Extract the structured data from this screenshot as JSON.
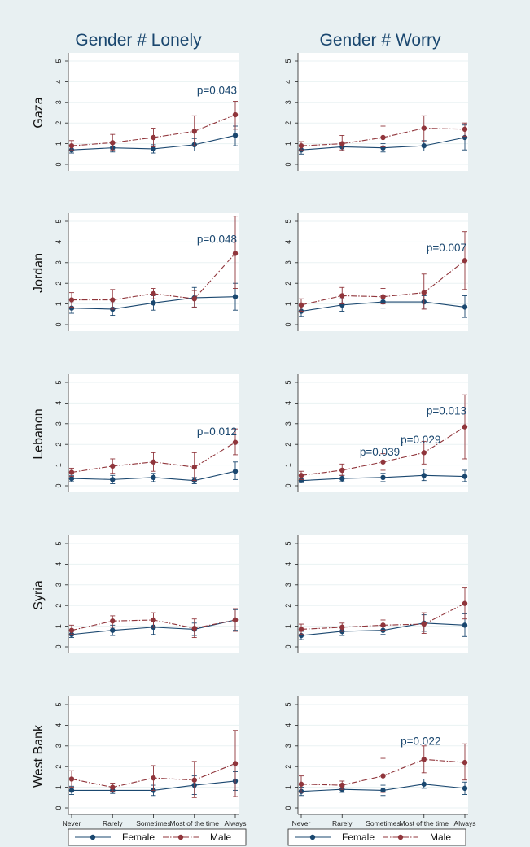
{
  "chart_data": {
    "type": "line",
    "columns": [
      "Gender # Lonely",
      "Gender # Worry"
    ],
    "rows": [
      "Gaza",
      "Jordan",
      "Lebanon",
      "Syria",
      "West Bank"
    ],
    "categories": [
      "Never",
      "Rarely",
      "Sometimes",
      "Most of the time",
      "Always"
    ],
    "ylim": [
      0,
      5
    ],
    "yticks": [
      "0",
      "1",
      "2",
      "3",
      "4",
      "5"
    ],
    "legend": [
      {
        "name": "Female",
        "color": "#1a476f"
      },
      {
        "name": "Male",
        "color": "#90353b"
      }
    ],
    "panels": [
      {
        "column": "Gender # Lonely",
        "row": "Gaza",
        "series": [
          {
            "name": "Female",
            "values": [
              0.7,
              0.8,
              0.75,
              0.95,
              1.4
            ],
            "lo": [
              0.55,
              0.6,
              0.55,
              0.65,
              0.9
            ],
            "hi": [
              0.9,
              1.0,
              0.95,
              1.25,
              1.85
            ]
          },
          {
            "name": "Male",
            "values": [
              0.9,
              1.05,
              1.3,
              1.6,
              2.4
            ],
            "lo": [
              0.7,
              0.7,
              0.85,
              0.9,
              1.7
            ],
            "hi": [
              1.15,
              1.45,
              1.75,
              2.35,
              3.05
            ]
          }
        ],
        "annotations": [
          {
            "text": "p=0.043",
            "x": "Always",
            "y": 3.4
          }
        ]
      },
      {
        "column": "Gender # Worry",
        "row": "Gaza",
        "series": [
          {
            "name": "Female",
            "values": [
              0.7,
              0.85,
              0.8,
              0.9,
              1.3
            ],
            "lo": [
              0.5,
              0.65,
              0.6,
              0.65,
              0.7
            ],
            "hi": [
              0.9,
              1.05,
              1.0,
              1.15,
              1.9
            ]
          },
          {
            "name": "Male",
            "values": [
              0.9,
              1.0,
              1.3,
              1.75,
              1.7
            ],
            "lo": [
              0.7,
              0.7,
              0.85,
              1.1,
              1.35
            ],
            "hi": [
              1.1,
              1.4,
              1.85,
              2.35,
              2.0
            ]
          }
        ],
        "annotations": []
      },
      {
        "column": "Gender # Lonely",
        "row": "Jordan",
        "series": [
          {
            "name": "Female",
            "values": [
              0.8,
              0.75,
              1.05,
              1.3,
              1.35
            ],
            "lo": [
              0.55,
              0.45,
              0.7,
              0.85,
              0.7
            ],
            "hi": [
              1.05,
              1.05,
              1.4,
              1.8,
              2.0
            ]
          },
          {
            "name": "Male",
            "values": [
              1.2,
              1.2,
              1.5,
              1.25,
              3.45
            ],
            "lo": [
              0.85,
              0.75,
              1.25,
              0.85,
              1.75
            ],
            "hi": [
              1.55,
              1.7,
              1.75,
              1.65,
              5.25
            ]
          }
        ],
        "annotations": [
          {
            "text": "p=0.048",
            "x": "Always",
            "y": 3.95
          }
        ]
      },
      {
        "column": "Gender # Worry",
        "row": "Jordan",
        "series": [
          {
            "name": "Female",
            "values": [
              0.65,
              0.95,
              1.1,
              1.1,
              0.85
            ],
            "lo": [
              0.4,
              0.65,
              0.8,
              0.8,
              0.35
            ],
            "hi": [
              0.9,
              1.25,
              1.4,
              1.4,
              1.4
            ]
          },
          {
            "name": "Male",
            "values": [
              0.95,
              1.4,
              1.35,
              1.55,
              3.1
            ],
            "lo": [
              0.65,
              1.0,
              1.0,
              0.75,
              1.7
            ],
            "hi": [
              1.25,
              1.8,
              1.75,
              2.45,
              4.5
            ]
          }
        ],
        "annotations": [
          {
            "text": "p=0.007",
            "x": "Always",
            "y": 3.55
          }
        ]
      },
      {
        "column": "Gender # Lonely",
        "row": "Lebanon",
        "series": [
          {
            "name": "Female",
            "values": [
              0.35,
              0.3,
              0.4,
              0.25,
              0.7
            ],
            "lo": [
              0.2,
              0.1,
              0.2,
              0.1,
              0.3
            ],
            "hi": [
              0.5,
              0.5,
              0.6,
              0.4,
              1.15
            ]
          },
          {
            "name": "Male",
            "values": [
              0.65,
              0.95,
              1.15,
              0.9,
              2.1
            ],
            "lo": [
              0.45,
              0.6,
              0.7,
              0.25,
              1.5
            ],
            "hi": [
              0.85,
              1.3,
              1.6,
              1.6,
              2.75
            ]
          }
        ],
        "annotations": [
          {
            "text": "p=0.012",
            "x": "Always",
            "y": 2.45
          }
        ]
      },
      {
        "column": "Gender # Worry",
        "row": "Lebanon",
        "series": [
          {
            "name": "Female",
            "values": [
              0.25,
              0.35,
              0.4,
              0.5,
              0.45
            ],
            "lo": [
              0.15,
              0.2,
              0.2,
              0.25,
              0.2
            ],
            "hi": [
              0.35,
              0.5,
              0.6,
              0.8,
              0.75
            ]
          },
          {
            "name": "Male",
            "values": [
              0.5,
              0.75,
              1.15,
              1.6,
              2.85
            ],
            "lo": [
              0.3,
              0.5,
              0.75,
              1.05,
              1.3
            ],
            "hi": [
              0.7,
              1.05,
              1.55,
              2.15,
              4.4
            ]
          }
        ],
        "annotations": [
          {
            "text": "p=0.039",
            "x": "Sometimes",
            "y": 1.45
          },
          {
            "text": "p=0.029",
            "x": "Most of the time",
            "y": 2.05
          },
          {
            "text": "p=0.013",
            "x": "Always",
            "y": 3.45
          }
        ]
      },
      {
        "column": "Gender # Lonely",
        "row": "Syria",
        "series": [
          {
            "name": "Female",
            "values": [
              0.6,
              0.8,
              0.95,
              0.85,
              1.3
            ],
            "lo": [
              0.45,
              0.55,
              0.6,
              0.55,
              0.8
            ],
            "hi": [
              0.75,
              1.05,
              1.3,
              1.15,
              1.8
            ]
          },
          {
            "name": "Male",
            "values": [
              0.8,
              1.25,
              1.3,
              0.9,
              1.3
            ],
            "lo": [
              0.6,
              0.95,
              0.95,
              0.45,
              0.75
            ],
            "hi": [
              1.05,
              1.5,
              1.65,
              1.35,
              1.85
            ]
          }
        ],
        "annotations": []
      },
      {
        "column": "Gender # Worry",
        "row": "Syria",
        "series": [
          {
            "name": "Female",
            "values": [
              0.55,
              0.75,
              0.8,
              1.15,
              1.05
            ],
            "lo": [
              0.35,
              0.55,
              0.6,
              0.75,
              0.5
            ],
            "hi": [
              0.75,
              0.95,
              1.0,
              1.55,
              1.6
            ]
          },
          {
            "name": "Male",
            "values": [
              0.85,
              0.95,
              1.05,
              1.1,
              2.1
            ],
            "lo": [
              0.6,
              0.75,
              0.8,
              0.65,
              1.35
            ],
            "hi": [
              1.1,
              1.15,
              1.3,
              1.65,
              2.85
            ]
          }
        ],
        "annotations": []
      },
      {
        "column": "Gender # Lonely",
        "row": "West Bank",
        "series": [
          {
            "name": "Female",
            "values": [
              0.85,
              0.85,
              0.85,
              1.1,
              1.3
            ],
            "lo": [
              0.65,
              0.7,
              0.6,
              0.65,
              0.85
            ],
            "hi": [
              1.05,
              1.0,
              1.1,
              1.55,
              1.75
            ]
          },
          {
            "name": "Male",
            "values": [
              1.4,
              1.0,
              1.45,
              1.35,
              2.15
            ],
            "lo": [
              1.0,
              0.8,
              0.85,
              0.5,
              0.55
            ],
            "hi": [
              1.8,
              1.2,
              2.05,
              2.25,
              3.75
            ]
          }
        ],
        "annotations": []
      },
      {
        "column": "Gender # Worry",
        "row": "West Bank",
        "series": [
          {
            "name": "Female",
            "values": [
              0.8,
              0.9,
              0.85,
              1.15,
              0.95
            ],
            "lo": [
              0.6,
              0.75,
              0.6,
              0.95,
              0.65
            ],
            "hi": [
              1.0,
              1.05,
              1.1,
              1.4,
              1.25
            ]
          },
          {
            "name": "Male",
            "values": [
              1.15,
              1.1,
              1.55,
              2.35,
              2.2
            ],
            "lo": [
              0.75,
              0.9,
              0.75,
              1.7,
              1.35
            ],
            "hi": [
              1.55,
              1.3,
              2.4,
              3.0,
              3.1
            ]
          }
        ],
        "annotations": [
          {
            "text": "p=0.022",
            "x": "Most of the time",
            "y": 3.05
          }
        ]
      }
    ]
  }
}
